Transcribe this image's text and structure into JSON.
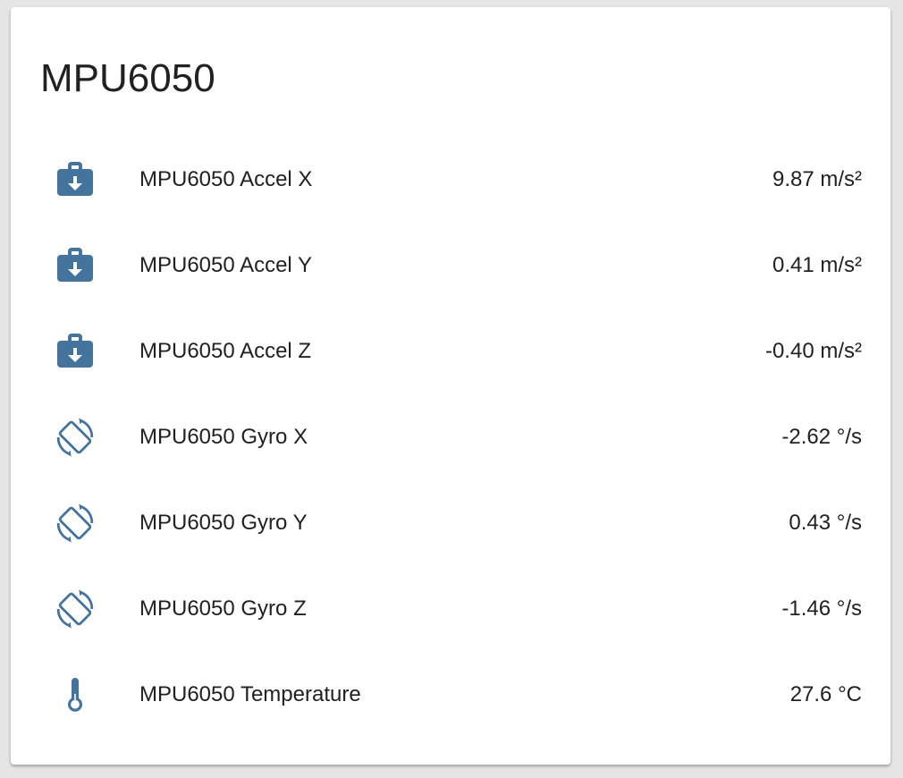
{
  "card": {
    "title": "MPU6050",
    "icon_color": "#44739e",
    "entities": [
      {
        "name": "MPU6050 Accel X",
        "state": "9.87 m/s²",
        "icon": "briefcase-download-icon"
      },
      {
        "name": "MPU6050 Accel Y",
        "state": "0.41 m/s²",
        "icon": "briefcase-download-icon"
      },
      {
        "name": "MPU6050 Accel Z",
        "state": "-0.40 m/s²",
        "icon": "briefcase-download-icon"
      },
      {
        "name": "MPU6050 Gyro X",
        "state": "-2.62 °/s",
        "icon": "screen-rotation-icon"
      },
      {
        "name": "MPU6050 Gyro Y",
        "state": "0.43 °/s",
        "icon": "screen-rotation-icon"
      },
      {
        "name": "MPU6050 Gyro Z",
        "state": "-1.46 °/s",
        "icon": "screen-rotation-icon"
      },
      {
        "name": "MPU6050 Temperature",
        "state": "27.6 °C",
        "icon": "thermometer-icon"
      }
    ]
  }
}
